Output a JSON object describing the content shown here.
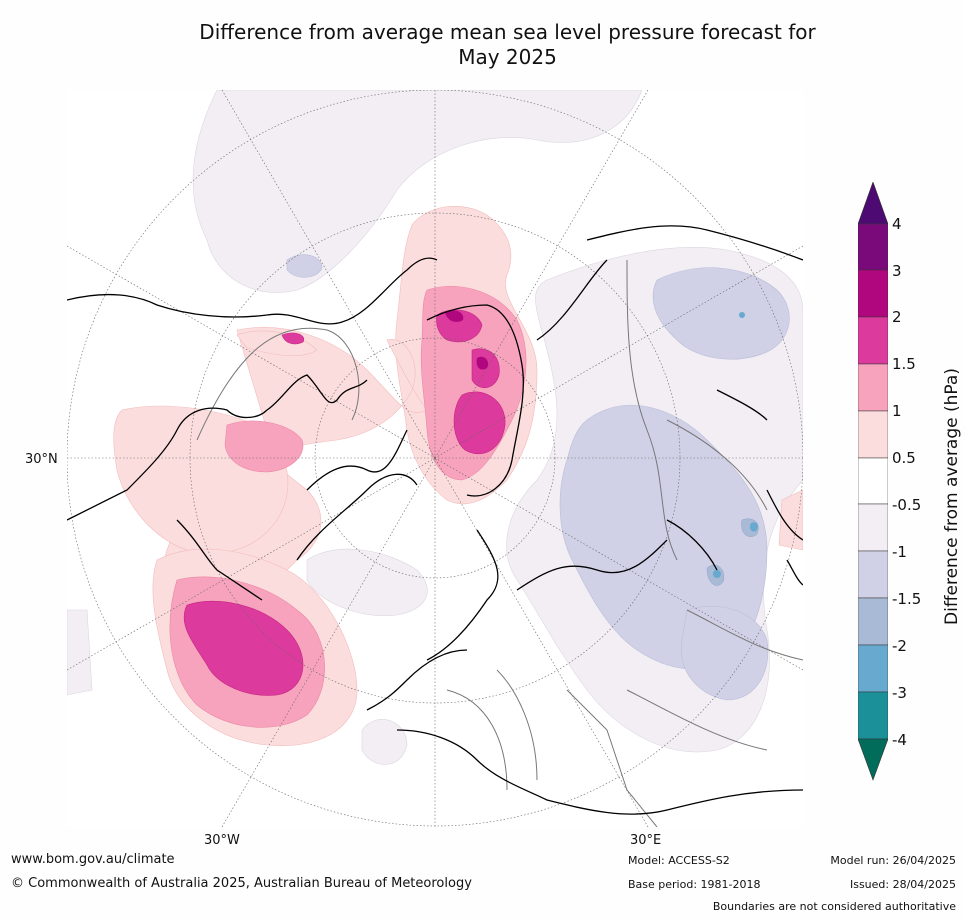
{
  "title_line1": "Difference from average mean sea level pressure forecast for",
  "title_line2": "May 2025",
  "lat_label": "30°N",
  "lon_labels": {
    "west": "30°W",
    "east": "30°E"
  },
  "colorbar": {
    "title": "Difference from average (hPa)",
    "ticks": [
      "4",
      "3",
      "2",
      "1.5",
      "1",
      "0.5",
      "-0.5",
      "-1",
      "-1.5",
      "-2",
      "-3",
      "-4"
    ],
    "colors": {
      "above_4": "#4d0a72",
      "3_to_4": "#7a0a7a",
      "2_to_3": "#b0077e",
      "1.5_to_2": "#dc3a9d",
      "1_to_1.5": "#f7a3bd",
      "0.5_to_1": "#fcdddd",
      "neutral": "#ffffff",
      "-1_to_-0.5": "#f2eef4",
      "-1.5_to_-1": "#d0d1e6",
      "-2_to_-1.5": "#a8bad5",
      "-3_to_-2": "#67a9cf",
      "-4_to_-3": "#1c9099",
      "below_-4": "#016c59"
    }
  },
  "footer": {
    "url": "www.bom.gov.au/climate",
    "copyright": "© Commonwealth of Australia 2025, Australian Bureau of Meteorology",
    "model": "Model: ACCESS-S2",
    "base_period": "Base period: 1981-2018",
    "model_run": "Model run: 26/04/2025",
    "issued": "Issued: 28/04/2025",
    "disclaimer": "Boundaries are not considered authoritative"
  }
}
